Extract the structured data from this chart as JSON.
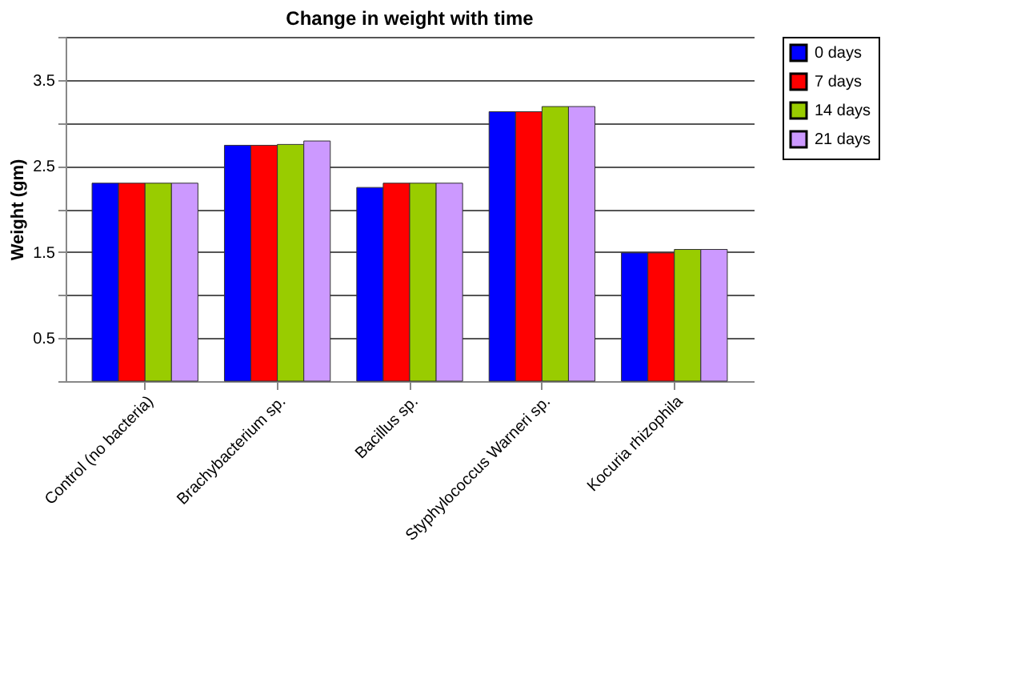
{
  "chart_data": {
    "type": "bar",
    "title": "Change in weight with time",
    "ylabel": "Weight (gm)",
    "categories": [
      "Control  (no bacteria)",
      "Brachybacterium sp.",
      "Bacillus sp.",
      "Styphylococcus Warneri sp.",
      "Kocuria rhizophila"
    ],
    "series": [
      {
        "name": "0 days",
        "color": "#0000ff",
        "values": [
          2.3,
          2.74,
          2.25,
          3.13,
          1.49
        ]
      },
      {
        "name": "7 days",
        "color": "#ff0000",
        "values": [
          2.3,
          2.74,
          2.3,
          3.13,
          1.49
        ]
      },
      {
        "name": "14 days",
        "color": "#99cc00",
        "values": [
          2.3,
          2.75,
          2.3,
          3.19,
          1.53
        ]
      },
      {
        "name": "21 days",
        "color": "#cc99ff",
        "values": [
          2.3,
          2.79,
          2.3,
          3.19,
          1.53
        ]
      }
    ],
    "ylim": [
      0,
      4
    ],
    "yticks": [
      {
        "value": 0,
        "label": null
      },
      0.5,
      {
        "value": 1,
        "label": null
      },
      1.5,
      {
        "value": 2,
        "label": null
      },
      2.5,
      {
        "value": 3,
        "label": null
      },
      3.5,
      {
        "value": 4,
        "label": null
      }
    ],
    "grid": "y",
    "legend": "right"
  }
}
